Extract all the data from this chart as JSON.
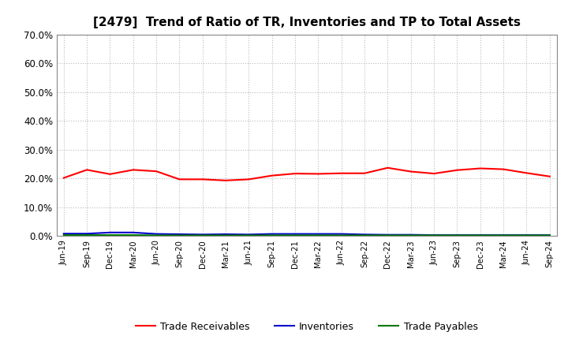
{
  "title": "[2479]  Trend of Ratio of TR, Inventories and TP to Total Assets",
  "x_labels": [
    "Jun-19",
    "Sep-19",
    "Dec-19",
    "Mar-20",
    "Jun-20",
    "Sep-20",
    "Dec-20",
    "Mar-21",
    "Jun-21",
    "Sep-21",
    "Dec-21",
    "Mar-22",
    "Jun-22",
    "Sep-22",
    "Dec-22",
    "Mar-23",
    "Jun-23",
    "Sep-23",
    "Dec-23",
    "Mar-24",
    "Jun-24",
    "Sep-24"
  ],
  "trade_receivables": [
    0.202,
    0.23,
    0.215,
    0.23,
    0.225,
    0.197,
    0.197,
    0.193,
    0.197,
    0.21,
    0.217,
    0.216,
    0.218,
    0.218,
    0.237,
    0.224,
    0.217,
    0.229,
    0.235,
    0.232,
    0.219,
    0.207
  ],
  "inventories": [
    0.008,
    0.008,
    0.012,
    0.012,
    0.007,
    0.006,
    0.005,
    0.006,
    0.005,
    0.007,
    0.007,
    0.007,
    0.007,
    0.005,
    0.004,
    0.004,
    0.003,
    0.003,
    0.003,
    0.003,
    0.003,
    0.003
  ],
  "trade_payables": [
    0.003,
    0.003,
    0.003,
    0.003,
    0.002,
    0.002,
    0.002,
    0.002,
    0.002,
    0.002,
    0.002,
    0.002,
    0.002,
    0.002,
    0.002,
    0.002,
    0.002,
    0.002,
    0.002,
    0.002,
    0.002,
    0.002
  ],
  "tr_color": "#ff0000",
  "inv_color": "#0000cc",
  "tp_color": "#007700",
  "ylim": [
    0.0,
    0.7
  ],
  "yticks": [
    0.0,
    0.1,
    0.2,
    0.3,
    0.4,
    0.5,
    0.6,
    0.7
  ],
  "grid_color": "#bbbbbb",
  "bg_color": "#ffffff",
  "plot_bg_color": "#ffffff",
  "title_fontsize": 11,
  "legend_labels": [
    "Trade Receivables",
    "Inventories",
    "Trade Payables"
  ]
}
